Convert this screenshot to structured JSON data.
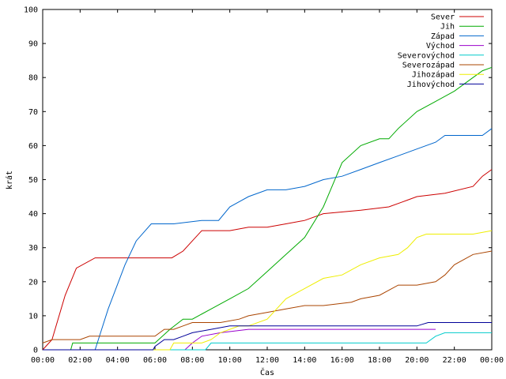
{
  "chart_data": {
    "type": "line",
    "xlabel": "Čas",
    "ylabel": "krát",
    "xlim": [
      0,
      24
    ],
    "ylim": [
      0,
      100
    ],
    "x_ticks": [
      {
        "value": 0,
        "label": "00:00"
      },
      {
        "value": 2,
        "label": "02:00"
      },
      {
        "value": 4,
        "label": "04:00"
      },
      {
        "value": 6,
        "label": "06:00"
      },
      {
        "value": 8,
        "label": "08:00"
      },
      {
        "value": 10,
        "label": "10:00"
      },
      {
        "value": 12,
        "label": "12:00"
      },
      {
        "value": 14,
        "label": "14:00"
      },
      {
        "value": 16,
        "label": "16:00"
      },
      {
        "value": 18,
        "label": "18:00"
      },
      {
        "value": 20,
        "label": "20:00"
      },
      {
        "value": 22,
        "label": "22:00"
      },
      {
        "value": 24,
        "label": "00:00"
      }
    ],
    "y_ticks": [
      0,
      10,
      20,
      30,
      40,
      50,
      60,
      70,
      80,
      90,
      100
    ],
    "legend_position": "top-right",
    "grid": false,
    "series": [
      {
        "name": "Sever",
        "color": "#cc0000",
        "points": [
          [
            0,
            0
          ],
          [
            0.5,
            3
          ],
          [
            1.2,
            16
          ],
          [
            1.8,
            24
          ],
          [
            2.8,
            27
          ],
          [
            6.9,
            27
          ],
          [
            7.5,
            29
          ],
          [
            8,
            32
          ],
          [
            8.5,
            35
          ],
          [
            10,
            35
          ],
          [
            11,
            36
          ],
          [
            12,
            36
          ],
          [
            13,
            37
          ],
          [
            14,
            38
          ],
          [
            15,
            40
          ],
          [
            17,
            41
          ],
          [
            18.5,
            42
          ],
          [
            19.5,
            44
          ],
          [
            20,
            45
          ],
          [
            21.5,
            46
          ],
          [
            23,
            48
          ],
          [
            23.5,
            51
          ],
          [
            24,
            53
          ]
        ]
      },
      {
        "name": "Jih",
        "color": "#00aa00",
        "points": [
          [
            0,
            0
          ],
          [
            1.5,
            0
          ],
          [
            1.6,
            2
          ],
          [
            6,
            2
          ],
          [
            6.8,
            6
          ],
          [
            7.5,
            9
          ],
          [
            8,
            9
          ],
          [
            9,
            12
          ],
          [
            10,
            15
          ],
          [
            11,
            18
          ],
          [
            12,
            23
          ],
          [
            13,
            28
          ],
          [
            14,
            33
          ],
          [
            15,
            42
          ],
          [
            16,
            55
          ],
          [
            17,
            60
          ],
          [
            18,
            62
          ],
          [
            18.5,
            62
          ],
          [
            19,
            65
          ],
          [
            20,
            70
          ],
          [
            21,
            73
          ],
          [
            22,
            76
          ],
          [
            23,
            80
          ],
          [
            23.5,
            82
          ],
          [
            24,
            83
          ]
        ]
      },
      {
        "name": "Západ",
        "color": "#0066cc",
        "points": [
          [
            0,
            0
          ],
          [
            2.8,
            0
          ],
          [
            3.5,
            12
          ],
          [
            4.4,
            25
          ],
          [
            5,
            32
          ],
          [
            5.8,
            37
          ],
          [
            7,
            37
          ],
          [
            8.5,
            38
          ],
          [
            9.4,
            38
          ],
          [
            10,
            42
          ],
          [
            11,
            45
          ],
          [
            12,
            47
          ],
          [
            13,
            47
          ],
          [
            14,
            48
          ],
          [
            15,
            50
          ],
          [
            16,
            51
          ],
          [
            17,
            53
          ],
          [
            18,
            55
          ],
          [
            19,
            57
          ],
          [
            20,
            59
          ],
          [
            21,
            61
          ],
          [
            21.5,
            63
          ],
          [
            22.5,
            63
          ],
          [
            23.5,
            63
          ],
          [
            24,
            65
          ]
        ]
      },
      {
        "name": "Východ",
        "color": "#9900cc",
        "points": [
          [
            0,
            0
          ],
          [
            7.6,
            0
          ],
          [
            8,
            2
          ],
          [
            8.5,
            4
          ],
          [
            9.5,
            5
          ],
          [
            11,
            6
          ],
          [
            12,
            6
          ],
          [
            20.5,
            6
          ],
          [
            21,
            6
          ]
        ]
      },
      {
        "name": "Severovýchod",
        "color": "#00cccc",
        "points": [
          [
            0,
            0
          ],
          [
            8.7,
            0
          ],
          [
            9,
            2
          ],
          [
            10,
            2
          ],
          [
            19,
            2
          ],
          [
            20.5,
            2
          ],
          [
            21,
            4
          ],
          [
            21.5,
            5
          ],
          [
            24,
            5
          ]
        ]
      },
      {
        "name": "Severozápad",
        "color": "#aa4400",
        "points": [
          [
            0,
            2
          ],
          [
            0.5,
            3
          ],
          [
            2,
            3
          ],
          [
            2.5,
            4
          ],
          [
            6,
            4
          ],
          [
            6.5,
            6
          ],
          [
            7,
            6
          ],
          [
            7.5,
            7
          ],
          [
            8,
            8
          ],
          [
            9.5,
            8
          ],
          [
            10.5,
            9
          ],
          [
            11,
            10
          ],
          [
            12,
            11
          ],
          [
            13,
            12
          ],
          [
            14,
            13
          ],
          [
            15,
            13
          ],
          [
            16.5,
            14
          ],
          [
            17,
            15
          ],
          [
            18,
            16
          ],
          [
            19,
            19
          ],
          [
            20,
            19
          ],
          [
            21,
            20
          ],
          [
            21.5,
            22
          ],
          [
            22,
            25
          ],
          [
            23,
            28
          ],
          [
            24,
            29
          ]
        ]
      },
      {
        "name": "Jihozápad",
        "color": "#eeee00",
        "points": [
          [
            0,
            0
          ],
          [
            6.8,
            0
          ],
          [
            7,
            2
          ],
          [
            8.5,
            2
          ],
          [
            9,
            3
          ],
          [
            9.5,
            5
          ],
          [
            10.5,
            7
          ],
          [
            11,
            7
          ],
          [
            12,
            9
          ],
          [
            12.5,
            12
          ],
          [
            13,
            15
          ],
          [
            14,
            18
          ],
          [
            15,
            21
          ],
          [
            16,
            22
          ],
          [
            17,
            25
          ],
          [
            18,
            27
          ],
          [
            19,
            28
          ],
          [
            19.5,
            30
          ],
          [
            20,
            33
          ],
          [
            20.5,
            34
          ],
          [
            22,
            34
          ],
          [
            23,
            34
          ],
          [
            24,
            35
          ]
        ]
      },
      {
        "name": "Jihovýchod",
        "color": "#000099",
        "points": [
          [
            0,
            0
          ],
          [
            5.9,
            0
          ],
          [
            6,
            1
          ],
          [
            6.5,
            3
          ],
          [
            7,
            3
          ],
          [
            7.5,
            4
          ],
          [
            8,
            5
          ],
          [
            9,
            6
          ],
          [
            10,
            7
          ],
          [
            12,
            7
          ],
          [
            16,
            7
          ],
          [
            20,
            7
          ],
          [
            20.6,
            8
          ],
          [
            24,
            8
          ]
        ]
      }
    ]
  }
}
